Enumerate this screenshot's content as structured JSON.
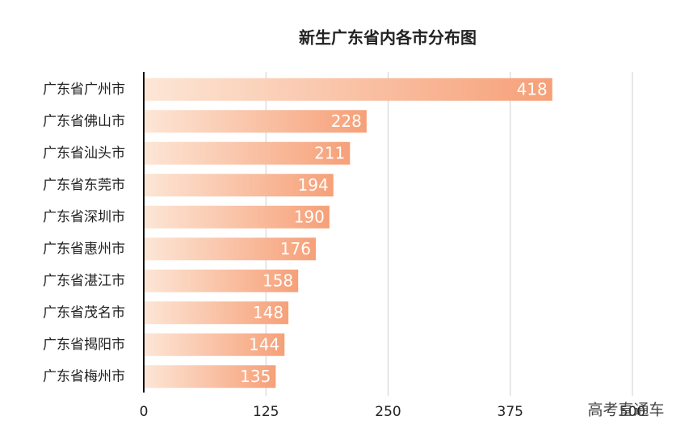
{
  "chart_data": {
    "type": "barh",
    "title": "新生广东省内各市分布图",
    "categories": [
      "广东省广州市",
      "广东省佛山市",
      "广东省汕头市",
      "广东省东莞市",
      "广东省深圳市",
      "广东省惠州市",
      "广东省湛江市",
      "广东省茂名市",
      "广东省揭阳市",
      "广东省梅州市"
    ],
    "values": [
      418,
      228,
      211,
      194,
      190,
      176,
      158,
      148,
      144,
      135
    ],
    "color": "#f6a078",
    "xlim": [
      0,
      500
    ],
    "xticks": [
      0,
      125,
      250,
      375,
      500
    ],
    "grid": true,
    "watermark": "高考直通车"
  }
}
